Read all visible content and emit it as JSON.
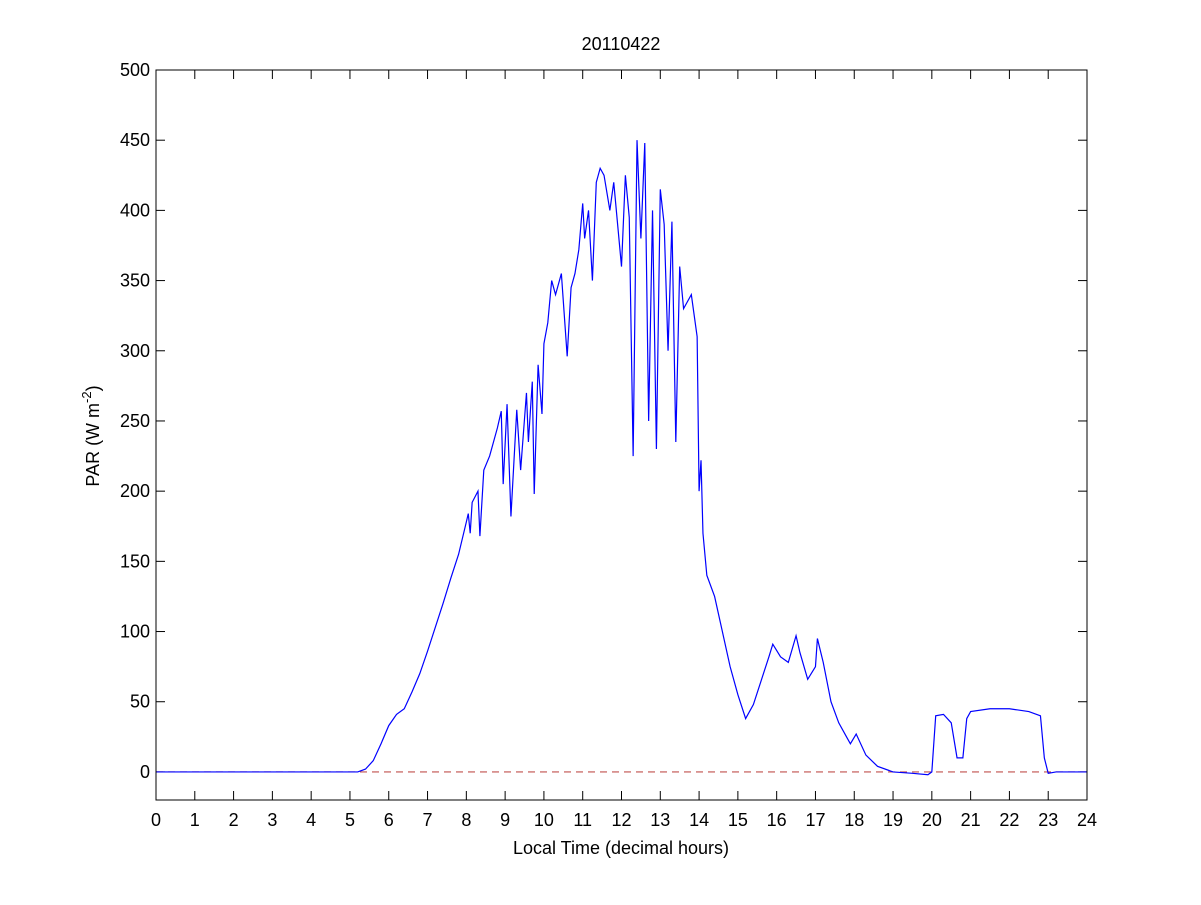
{
  "chart_data": {
    "type": "line",
    "title": "20110422",
    "xlabel": "Local Time (decimal hours)",
    "ylabel": {
      "text": "PAR (W m",
      "superscript": "-2",
      "suffix": ")"
    },
    "xlim": [
      0,
      24
    ],
    "xticks": [
      0,
      1,
      2,
      3,
      4,
      5,
      6,
      7,
      8,
      9,
      10,
      11,
      12,
      13,
      14,
      15,
      16,
      17,
      18,
      19,
      20,
      21,
      22,
      23,
      24
    ],
    "ylim": [
      -20,
      500
    ],
    "yticks": [
      0,
      50,
      100,
      150,
      200,
      250,
      300,
      350,
      400,
      450,
      500
    ],
    "reference_line": {
      "value": 0,
      "color": "#c0504d",
      "style": "dashed"
    },
    "series": [
      {
        "color": "#0000ff",
        "x": [
          0,
          5.2,
          5.4,
          5.6,
          5.8,
          6.0,
          6.2,
          6.4,
          6.6,
          6.8,
          7.0,
          7.2,
          7.4,
          7.6,
          7.8,
          8.0,
          8.05,
          8.1,
          8.15,
          8.3,
          8.35,
          8.45,
          8.6,
          8.8,
          8.9,
          8.95,
          9.05,
          9.15,
          9.3,
          9.4,
          9.55,
          9.6,
          9.7,
          9.75,
          9.85,
          9.95,
          10.0,
          10.1,
          10.2,
          10.3,
          10.45,
          10.6,
          10.7,
          10.8,
          10.9,
          11.0,
          11.05,
          11.15,
          11.25,
          11.35,
          11.45,
          11.55,
          11.7,
          11.8,
          12.0,
          12.1,
          12.2,
          12.3,
          12.4,
          12.5,
          12.6,
          12.7,
          12.8,
          12.9,
          13.0,
          13.1,
          13.2,
          13.3,
          13.4,
          13.5,
          13.6,
          13.8,
          13.95,
          14.0,
          14.05,
          14.1,
          14.2,
          14.4,
          14.6,
          14.8,
          15.0,
          15.2,
          15.4,
          15.6,
          15.8,
          15.9,
          16.1,
          16.3,
          16.5,
          16.6,
          16.8,
          17.0,
          17.05,
          17.2,
          17.4,
          17.6,
          17.8,
          17.9,
          18.05,
          18.3,
          18.6,
          19.0,
          19.5,
          19.9,
          20.0,
          20.1,
          20.3,
          20.5,
          20.65,
          20.8,
          20.9,
          21.0,
          21.5,
          22.0,
          22.5,
          22.8,
          22.9,
          23.0,
          23.2,
          24
        ],
        "values": [
          0,
          0,
          2,
          8,
          20,
          33,
          41,
          45,
          57,
          70,
          86,
          103,
          120,
          138,
          155,
          178,
          184,
          170,
          192,
          200,
          168,
          215,
          225,
          245,
          257,
          205,
          262,
          182,
          258,
          215,
          270,
          235,
          278,
          198,
          290,
          255,
          305,
          320,
          350,
          340,
          355,
          296,
          345,
          355,
          372,
          405,
          380,
          400,
          350,
          420,
          430,
          425,
          400,
          420,
          360,
          425,
          395,
          225,
          450,
          380,
          448,
          250,
          400,
          230,
          415,
          390,
          300,
          392,
          235,
          360,
          330,
          340,
          310,
          200,
          222,
          170,
          140,
          125,
          100,
          75,
          55,
          38,
          48,
          65,
          82,
          91,
          82,
          78,
          97,
          85,
          66,
          75,
          95,
          78,
          50,
          35,
          25,
          20,
          27,
          12,
          4,
          0,
          -1,
          -2,
          0,
          40,
          41,
          35,
          10,
          10,
          38,
          43,
          45,
          45,
          43,
          40,
          10,
          -1,
          0,
          0
        ]
      }
    ]
  }
}
